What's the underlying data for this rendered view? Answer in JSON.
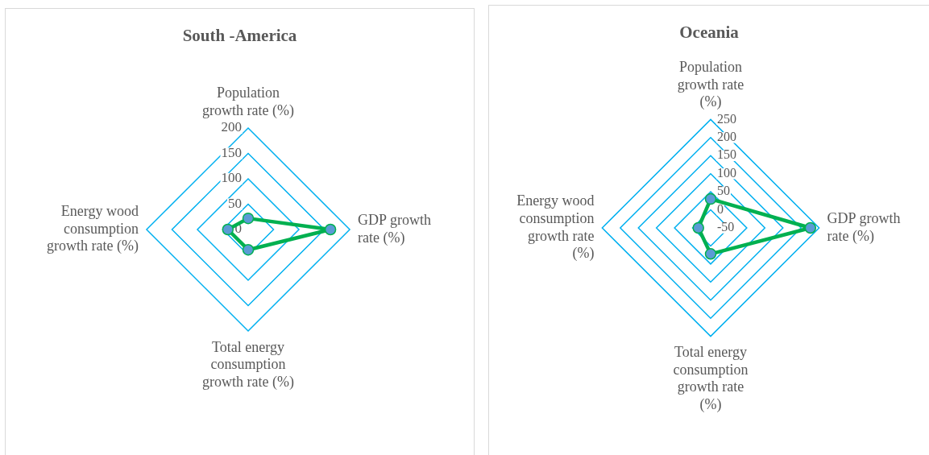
{
  "chart_data": [
    {
      "type": "radar",
      "title": "South -America",
      "categories": [
        "Population growth rate (%)",
        "GDP growth rate (%)",
        "Total energy consumption growth rate (%)",
        "Energy wood consumption growth rate (%)"
      ],
      "series": [
        {
          "color": "#00b050",
          "colors": [
            "#5b9bd5",
            "#5b9bd5",
            "#5b9bd5",
            "#5b9bd5"
          ],
          "values": [
            22,
            162,
            40,
            40
          ]
        }
      ],
      "ylim": [
        0,
        200
      ],
      "yticks": [
        0,
        50,
        100,
        150,
        200
      ],
      "grid": true,
      "marker": "circle"
    },
    {
      "type": "radar",
      "title": "Oceania",
      "categories": [
        "Population growth rate (%)",
        "GDP growth rate (%)",
        "Total energy consumption growth rate (%)",
        "Energy wood consumption growth rate (%)"
      ],
      "series": [
        {
          "color": "#00b050",
          "colors": [
            "#5b9bd5",
            "#5b9bd5",
            "#5b9bd5",
            "#5b9bd5"
          ],
          "values": [
            30,
            226,
            22,
            -16
          ]
        }
      ],
      "ylim": [
        -50,
        250
      ],
      "yticks": [
        -50,
        0,
        50,
        100,
        150,
        200,
        250
      ],
      "grid": true,
      "marker": "circle"
    }
  ]
}
